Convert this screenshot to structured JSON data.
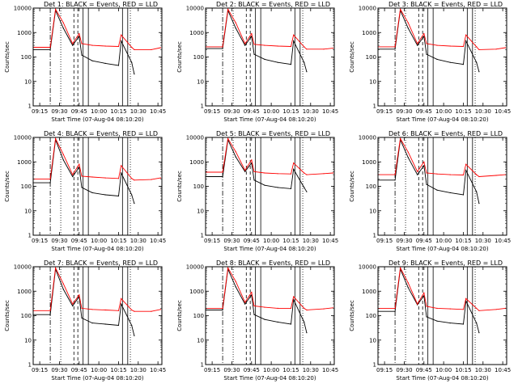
{
  "common": {
    "ylabel": "Counts/sec",
    "xlabel": "Start Time (07-Aug-04 08:10:20)",
    "yticks": [
      "1",
      "10",
      "100",
      "1000",
      "10000"
    ],
    "xticks": [
      "09:15",
      "09:30",
      "09:45",
      "10:00",
      "10:15",
      "10:30",
      "10:45"
    ],
    "colors": {
      "events": "#000000",
      "lld": "#ff0000"
    }
  },
  "chart_data": [
    {
      "type": "line",
      "title": "Det 1: BLACK = Events, RED = LLD",
      "ylim": [
        1,
        10000
      ],
      "yscale": "log",
      "x": [
        "09:10",
        "09:23",
        "09:27",
        "09:33",
        "09:40",
        "09:45",
        "09:47",
        "09:55",
        "10:05",
        "10:15",
        "10:17",
        "10:25",
        "10:27",
        "10:40",
        "10:47"
      ],
      "series": [
        {
          "name": "Events",
          "values": [
            200,
            200,
            8000,
            1500,
            300,
            700,
            120,
            70,
            55,
            45,
            450,
            60,
            20,
            null,
            null
          ]
        },
        {
          "name": "LLD",
          "values": [
            250,
            250,
            9000,
            2500,
            350,
            900,
            350,
            300,
            280,
            270,
            800,
            250,
            200,
            200,
            240
          ]
        }
      ]
    },
    {
      "type": "line",
      "title": "Det 2: BLACK = Events, RED = LLD",
      "ylim": [
        1,
        10000
      ],
      "yscale": "log",
      "x": [
        "09:10",
        "09:23",
        "09:27",
        "09:33",
        "09:40",
        "09:45",
        "09:47",
        "09:55",
        "10:05",
        "10:15",
        "10:17",
        "10:25",
        "10:27",
        "10:40",
        "10:47"
      ],
      "series": [
        {
          "name": "Events",
          "values": [
            220,
            220,
            8000,
            1500,
            300,
            700,
            130,
            80,
            60,
            50,
            450,
            60,
            25,
            null,
            null
          ]
        },
        {
          "name": "LLD",
          "values": [
            260,
            260,
            9000,
            2500,
            350,
            900,
            330,
            300,
            280,
            270,
            800,
            260,
            210,
            210,
            230
          ]
        }
      ]
    },
    {
      "type": "line",
      "title": "Det 3: BLACK = Events, RED = LLD",
      "ylim": [
        1,
        10000
      ],
      "yscale": "log",
      "x": [
        "09:10",
        "09:23",
        "09:27",
        "09:33",
        "09:40",
        "09:45",
        "09:47",
        "09:55",
        "10:05",
        "10:15",
        "10:17",
        "10:25",
        "10:27",
        "10:40",
        "10:47"
      ],
      "series": [
        {
          "name": "Events",
          "values": [
            210,
            210,
            8000,
            1500,
            300,
            700,
            130,
            80,
            60,
            50,
            450,
            60,
            25,
            null,
            null
          ]
        },
        {
          "name": "LLD",
          "values": [
            260,
            260,
            9000,
            2500,
            350,
            900,
            350,
            300,
            280,
            270,
            800,
            260,
            200,
            210,
            240
          ]
        }
      ]
    },
    {
      "type": "line",
      "title": "Det 4: BLACK = Events, RED = LLD",
      "ylim": [
        1,
        10000
      ],
      "yscale": "log",
      "x": [
        "09:10",
        "09:23",
        "09:27",
        "09:33",
        "09:40",
        "09:45",
        "09:47",
        "09:55",
        "10:05",
        "10:15",
        "10:17",
        "10:25",
        "10:27",
        "10:40",
        "10:47"
      ],
      "series": [
        {
          "name": "Events",
          "values": [
            140,
            140,
            8000,
            1200,
            250,
            600,
            90,
            55,
            45,
            40,
            350,
            45,
            20,
            null,
            null
          ]
        },
        {
          "name": "LLD",
          "values": [
            200,
            200,
            9000,
            2000,
            300,
            800,
            260,
            240,
            220,
            210,
            700,
            210,
            180,
            190,
            220
          ]
        }
      ]
    },
    {
      "type": "line",
      "title": "Det 5: BLACK = Events, RED = LLD",
      "ylim": [
        1,
        10000
      ],
      "yscale": "log",
      "x": [
        "09:10",
        "09:23",
        "09:27",
        "09:33",
        "09:40",
        "09:45",
        "09:47",
        "09:55",
        "10:05",
        "10:15",
        "10:17",
        "10:25",
        "10:27",
        "10:40",
        "10:47"
      ],
      "series": [
        {
          "name": "Events",
          "values": [
            250,
            250,
            8000,
            1600,
            400,
            900,
            180,
            110,
            90,
            80,
            500,
            90,
            60,
            null,
            null
          ]
        },
        {
          "name": "LLD",
          "values": [
            380,
            380,
            9000,
            2600,
            450,
            1200,
            400,
            350,
            330,
            320,
            900,
            350,
            300,
            330,
            350
          ]
        }
      ]
    },
    {
      "type": "line",
      "title": "Det 6: BLACK = Events, RED = LLD",
      "ylim": [
        1,
        10000
      ],
      "yscale": "log",
      "x": [
        "09:10",
        "09:23",
        "09:27",
        "09:33",
        "09:40",
        "09:45",
        "09:47",
        "09:55",
        "10:05",
        "10:15",
        "10:17",
        "10:25",
        "10:27",
        "10:40",
        "10:47"
      ],
      "series": [
        {
          "name": "Events",
          "values": [
            180,
            180,
            8000,
            1500,
            300,
            700,
            120,
            70,
            55,
            45,
            450,
            60,
            20,
            null,
            null
          ]
        },
        {
          "name": "LLD",
          "values": [
            300,
            300,
            9000,
            2500,
            400,
            1000,
            350,
            320,
            300,
            290,
            800,
            300,
            250,
            280,
            300
          ]
        }
      ]
    },
    {
      "type": "line",
      "title": "Det 7: BLACK = Events, RED = LLD",
      "ylim": [
        1,
        10000
      ],
      "yscale": "log",
      "x": [
        "09:10",
        "09:23",
        "09:27",
        "09:33",
        "09:40",
        "09:45",
        "09:47",
        "09:55",
        "10:05",
        "10:15",
        "10:17",
        "10:25",
        "10:27",
        "10:40",
        "10:47"
      ],
      "series": [
        {
          "name": "Events",
          "values": [
            110,
            110,
            8000,
            1200,
            250,
            600,
            80,
            50,
            45,
            40,
            300,
            40,
            15,
            null,
            null
          ]
        },
        {
          "name": "LLD",
          "values": [
            160,
            160,
            9000,
            2000,
            300,
            700,
            200,
            180,
            170,
            160,
            500,
            170,
            150,
            150,
            180
          ]
        }
      ]
    },
    {
      "type": "line",
      "title": "Det 8: BLACK = Events, RED = LLD",
      "ylim": [
        1,
        10000
      ],
      "yscale": "log",
      "x": [
        "09:10",
        "09:23",
        "09:27",
        "09:33",
        "09:40",
        "09:45",
        "09:47",
        "09:55",
        "10:05",
        "10:15",
        "10:17",
        "10:25",
        "10:27",
        "10:40",
        "10:47"
      ],
      "series": [
        {
          "name": "Events",
          "values": [
            170,
            170,
            8000,
            1500,
            300,
            700,
            110,
            70,
            55,
            45,
            450,
            55,
            20,
            null,
            null
          ]
        },
        {
          "name": "LLD",
          "values": [
            200,
            200,
            9000,
            2500,
            350,
            900,
            250,
            220,
            200,
            200,
            600,
            200,
            170,
            190,
            210
          ]
        }
      ]
    },
    {
      "type": "line",
      "title": "Det 9: BLACK = Events, RED = LLD",
      "ylim": [
        1,
        10000
      ],
      "yscale": "log",
      "x": [
        "09:10",
        "09:23",
        "09:27",
        "09:33",
        "09:40",
        "09:45",
        "09:47",
        "09:55",
        "10:05",
        "10:15",
        "10:17",
        "10:25",
        "10:27",
        "10:40",
        "10:47"
      ],
      "series": [
        {
          "name": "Events",
          "values": [
            150,
            150,
            8000,
            1400,
            280,
            650,
            90,
            60,
            50,
            45,
            400,
            50,
            20,
            null,
            null
          ]
        },
        {
          "name": "LLD",
          "values": [
            200,
            200,
            9000,
            2200,
            300,
            850,
            240,
            200,
            190,
            180,
            500,
            200,
            160,
            180,
            200
          ]
        }
      ]
    }
  ]
}
